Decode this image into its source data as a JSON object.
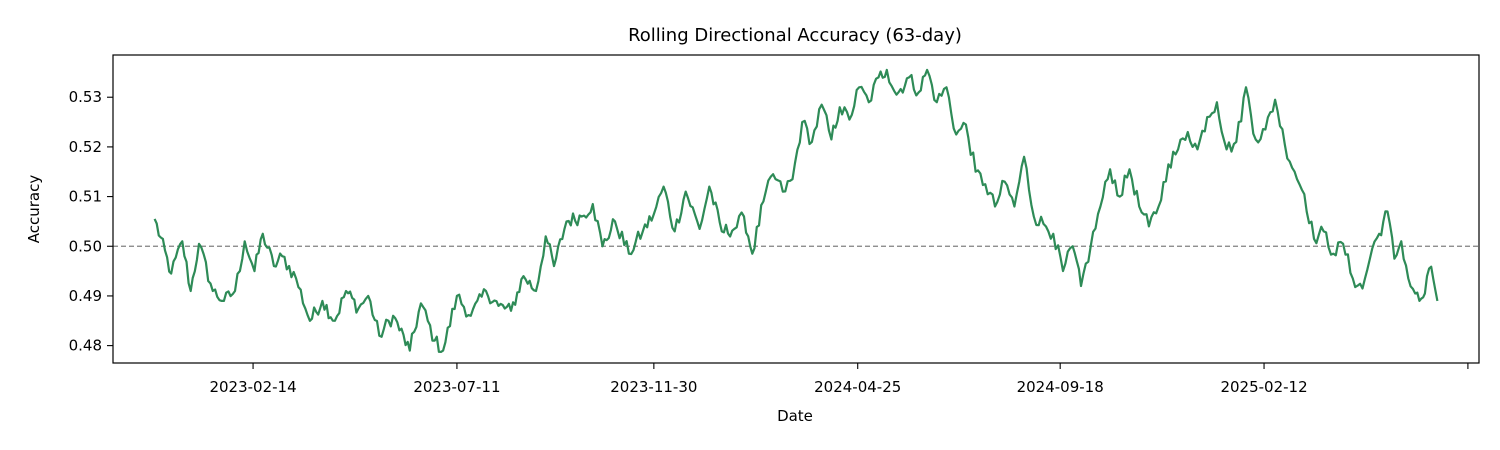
{
  "chart_data": {
    "type": "line",
    "title": "Rolling Directional Accuracy (63-day)",
    "xlabel": "Date",
    "ylabel": "Accuracy",
    "x_start": "2022-12-05",
    "x_end": "2025-06-17",
    "xlim": [
      "2022-11-05",
      "2025-07-17"
    ],
    "ylim": [
      0.4765,
      0.5385
    ],
    "x_ticks": [
      "2023-02-14",
      "2023-07-11",
      "2023-11-30",
      "2024-04-25",
      "2024-09-18",
      "2025-02-12"
    ],
    "y_ticks": [
      0.48,
      0.49,
      0.5,
      0.51,
      0.52,
      0.53
    ],
    "y_tick_labels": [
      "0.48",
      "0.49",
      "0.50",
      "0.51",
      "0.52",
      "0.53"
    ],
    "reference_line": {
      "y": 0.5,
      "style": "dashed",
      "color": "#808080"
    },
    "grid": false,
    "series": [
      {
        "color": "#2e8b57",
        "keypoints": [
          [
            "2022-12-05",
            0.5055
          ],
          [
            "2022-12-17",
            0.4945
          ],
          [
            "2022-12-25",
            0.501
          ],
          [
            "2022-12-31",
            0.491
          ],
          [
            "2023-01-06",
            0.5005
          ],
          [
            "2023-01-16",
            0.491
          ],
          [
            "2023-01-24",
            0.489
          ],
          [
            "2023-02-01",
            0.491
          ],
          [
            "2023-02-08",
            0.501
          ],
          [
            "2023-02-15",
            0.495
          ],
          [
            "2023-02-21",
            0.5025
          ],
          [
            "2023-03-01",
            0.496
          ],
          [
            "2023-03-07",
            0.498
          ],
          [
            "2023-03-17",
            0.4935
          ],
          [
            "2023-03-27",
            0.485
          ],
          [
            "2023-04-05",
            0.489
          ],
          [
            "2023-04-14",
            0.485
          ],
          [
            "2023-04-22",
            0.491
          ],
          [
            "2023-05-01",
            0.4875
          ],
          [
            "2023-05-08",
            0.49
          ],
          [
            "2023-05-16",
            0.482
          ],
          [
            "2023-05-26",
            0.486
          ],
          [
            "2023-06-07",
            0.479
          ],
          [
            "2023-06-15",
            0.4885
          ],
          [
            "2023-06-25",
            0.481
          ],
          [
            "2023-07-01",
            0.479
          ],
          [
            "2023-07-11",
            0.49
          ],
          [
            "2023-07-21",
            0.486
          ],
          [
            "2023-08-01",
            0.491
          ],
          [
            "2023-08-10",
            0.488
          ],
          [
            "2023-08-19",
            0.487
          ],
          [
            "2023-08-28",
            0.494
          ],
          [
            "2023-09-06",
            0.491
          ],
          [
            "2023-09-13",
            0.502
          ],
          [
            "2023-09-19",
            0.496
          ],
          [
            "2023-09-28",
            0.505
          ],
          [
            "2023-10-09",
            0.506
          ],
          [
            "2023-10-17",
            0.5085
          ],
          [
            "2023-10-24",
            0.5
          ],
          [
            "2023-11-02",
            0.505
          ],
          [
            "2023-11-12",
            0.4985
          ],
          [
            "2023-11-22",
            0.503
          ],
          [
            "2023-11-30",
            0.5065
          ],
          [
            "2023-12-07",
            0.512
          ],
          [
            "2023-12-15",
            0.503
          ],
          [
            "2023-12-23",
            0.511
          ],
          [
            "2024-01-02",
            0.5035
          ],
          [
            "2024-01-09",
            0.512
          ],
          [
            "2024-01-18",
            0.503
          ],
          [
            "2024-01-27",
            0.5035
          ],
          [
            "2024-02-03",
            0.506
          ],
          [
            "2024-02-09",
            0.4985
          ],
          [
            "2024-02-17",
            0.509
          ],
          [
            "2024-02-24",
            0.5145
          ],
          [
            "2024-03-02",
            0.511
          ],
          [
            "2024-03-09",
            0.5135
          ],
          [
            "2024-03-16",
            0.525
          ],
          [
            "2024-03-23",
            0.521
          ],
          [
            "2024-03-30",
            0.5285
          ],
          [
            "2024-04-06",
            0.5215
          ],
          [
            "2024-04-12",
            0.528
          ],
          [
            "2024-04-19",
            0.5255
          ],
          [
            "2024-04-26",
            0.532
          ],
          [
            "2024-05-03",
            0.529
          ],
          [
            "2024-05-10",
            0.534
          ],
          [
            "2024-05-16",
            0.5355
          ],
          [
            "2024-05-23",
            0.5305
          ],
          [
            "2024-06-01",
            0.534
          ],
          [
            "2024-06-08",
            0.531
          ],
          [
            "2024-06-14",
            0.5355
          ],
          [
            "2024-06-21",
            0.529
          ],
          [
            "2024-06-28",
            0.532
          ],
          [
            "2024-07-05",
            0.5225
          ],
          [
            "2024-07-12",
            0.5245
          ],
          [
            "2024-07-19",
            0.515
          ],
          [
            "2024-07-26",
            0.5125
          ],
          [
            "2024-08-02",
            0.508
          ],
          [
            "2024-08-09",
            0.513
          ],
          [
            "2024-08-16",
            0.508
          ],
          [
            "2024-08-23",
            0.518
          ],
          [
            "2024-08-30",
            0.506
          ],
          [
            "2024-09-06",
            0.5045
          ],
          [
            "2024-09-13",
            0.5025
          ],
          [
            "2024-09-20",
            0.495
          ],
          [
            "2024-09-27",
            0.5
          ],
          [
            "2024-10-03",
            0.492
          ],
          [
            "2024-10-10",
            0.5
          ],
          [
            "2024-10-17",
            0.508
          ],
          [
            "2024-10-24",
            0.5155
          ],
          [
            "2024-10-31",
            0.51
          ],
          [
            "2024-11-07",
            0.5155
          ],
          [
            "2024-11-14",
            0.508
          ],
          [
            "2024-11-21",
            0.504
          ],
          [
            "2024-11-28",
            0.508
          ],
          [
            "2024-12-05",
            0.5165
          ],
          [
            "2024-12-12",
            0.5195
          ],
          [
            "2024-12-19",
            0.523
          ],
          [
            "2024-12-26",
            0.5195
          ],
          [
            "2025-01-02",
            0.526
          ],
          [
            "2025-01-09",
            0.529
          ],
          [
            "2025-01-16",
            0.5195
          ],
          [
            "2025-01-23",
            0.521
          ],
          [
            "2025-01-30",
            0.532
          ],
          [
            "2025-02-06",
            0.5215
          ],
          [
            "2025-02-13",
            0.5235
          ],
          [
            "2025-02-20",
            0.5295
          ],
          [
            "2025-02-27",
            0.5205
          ],
          [
            "2025-03-06",
            0.515
          ],
          [
            "2025-03-13",
            0.5105
          ],
          [
            "2025-03-20",
            0.5015
          ],
          [
            "2025-03-27",
            0.503
          ],
          [
            "2025-04-03",
            0.4985
          ],
          [
            "2025-04-10",
            0.5005
          ],
          [
            "2025-04-17",
            0.4935
          ],
          [
            "2025-04-24",
            0.4915
          ],
          [
            "2025-05-01",
            0.4995
          ],
          [
            "2025-05-06",
            0.5025
          ],
          [
            "2025-05-12",
            0.507
          ],
          [
            "2025-05-17",
            0.4975
          ],
          [
            "2025-05-22",
            0.501
          ],
          [
            "2025-05-27",
            0.4935
          ],
          [
            "2025-06-01",
            0.4905
          ],
          [
            "2025-06-04",
            0.489
          ],
          [
            "2025-06-08",
            0.4905
          ],
          [
            "2025-06-11",
            0.4955
          ],
          [
            "2025-06-14",
            0.4935
          ],
          [
            "2025-06-17",
            0.489
          ]
        ]
      }
    ]
  }
}
